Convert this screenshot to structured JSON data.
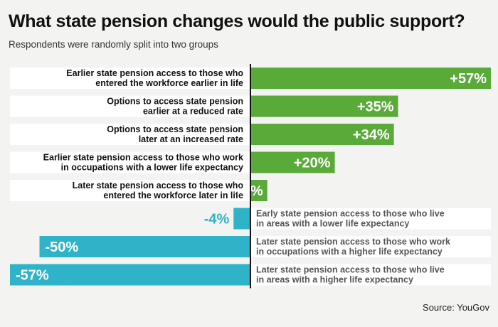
{
  "title": "What state pension changes would the public support?",
  "subtitle": "Respondents were randomly split into two groups",
  "source": "Source: YouGov",
  "colors": {
    "positive": "#5aaa3a",
    "negative": "#2eb3c9",
    "axis": "#111111",
    "band": "#ffffff"
  },
  "chart_data": {
    "type": "bar",
    "orientation": "horizontal",
    "categories": [
      [
        "Earlier state pension access to those who",
        "entered the workforce earlier in life"
      ],
      [
        "Options to access state pension",
        "earlier at a reduced rate"
      ],
      [
        "Options to access state pension",
        "later at an increased rate"
      ],
      [
        "Earlier state pension access to those who work",
        "in occupations with a lower life expectancy"
      ],
      [
        "Later state pension access to those who",
        "entered the workforce later in life"
      ],
      [
        "Early state pension access to those who live",
        "in areas with a lower life expectancy"
      ],
      [
        "Later state pension access to those who work",
        "in occupations with a higher life expectancy"
      ],
      [
        "Later state pension access to those who live",
        "in areas with a higher life expectancy"
      ]
    ],
    "values": [
      57,
      35,
      34,
      20,
      4,
      -4,
      -50,
      -57
    ],
    "value_labels": [
      "+57%",
      "+35%",
      "+34%",
      "+20%",
      "+4%",
      "-4%",
      "-50%",
      "-57%"
    ],
    "xlim": [
      -57,
      57
    ]
  }
}
